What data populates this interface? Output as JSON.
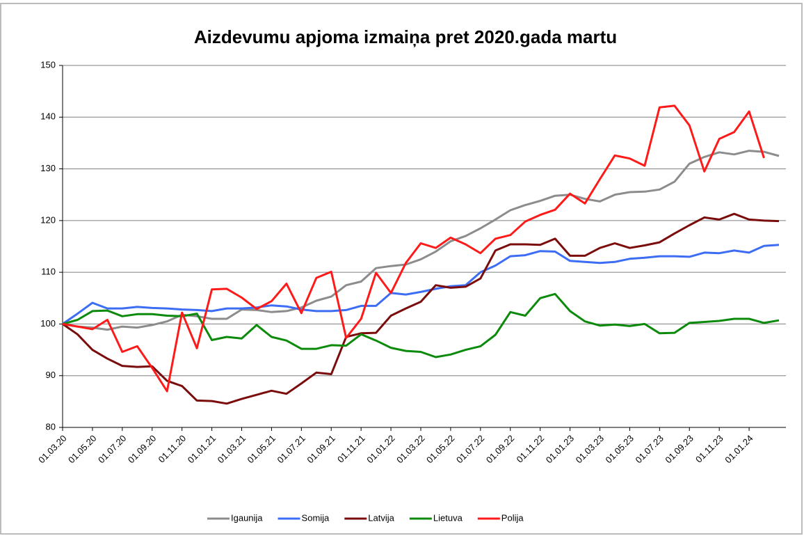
{
  "chart_data": {
    "type": "line",
    "title": "Aizdevumu apjoma izmaiņa pret 2020.gada martu",
    "categories": [
      "01.03.20",
      null,
      "01.05.20",
      null,
      "01.07.20",
      null,
      "01.09.20",
      null,
      "01.11.20",
      null,
      "01.01.21",
      null,
      "01.03.21",
      null,
      "01.05.21",
      null,
      "01.07.21",
      null,
      "01.09.21",
      null,
      "01.11.21",
      null,
      "01.01.22",
      null,
      "01.03.22",
      null,
      "01.05.22",
      null,
      "01.07.22",
      null,
      "01.09.22",
      null,
      "01.11.22",
      null,
      "01.01.23",
      null,
      "01.03.23",
      null,
      "01.05.23",
      null,
      "01.07.23",
      null,
      "01.09.23",
      null,
      "01.11.23",
      null,
      "01.01.24",
      null,
      null
    ],
    "series": [
      {
        "name": "Igaunija",
        "color": "#8c8c8c",
        "values": [
          100,
          99.5,
          99.3,
          98.9,
          99.5,
          99.3,
          99.8,
          100.5,
          101.8,
          101.5,
          101,
          101,
          102.8,
          102.7,
          102.3,
          102.5,
          103.2,
          104.5,
          105.3,
          107.5,
          108.2,
          110.8,
          111.2,
          111.5,
          112.5,
          114,
          116,
          117,
          118.5,
          120.2,
          122,
          123,
          123.8,
          124.8,
          125,
          124.2,
          123.7,
          125,
          125.5,
          125.6,
          126,
          127.5,
          131,
          132.3,
          133.2,
          132.8,
          133.5,
          133.3,
          132.5
        ]
      },
      {
        "name": "Somija",
        "color": "#3d6cf5",
        "values": [
          100,
          102,
          104.1,
          103,
          103,
          103.3,
          103.1,
          103,
          102.8,
          102.7,
          102.5,
          103,
          103,
          103.2,
          103.6,
          103.4,
          102.8,
          102.5,
          102.5,
          102.7,
          103.5,
          103.5,
          106,
          105.7,
          106.2,
          106.8,
          107.3,
          107.5,
          110,
          111.3,
          113.1,
          113.3,
          114.1,
          114,
          112.2,
          112,
          111.8,
          112,
          112.6,
          112.8,
          113.1,
          113.1,
          113,
          113.8,
          113.7,
          114.2,
          113.8,
          115.1,
          115.3
        ]
      },
      {
        "name": "Latvija",
        "color": "#7a0c0c",
        "values": [
          100,
          98,
          95,
          93.3,
          91.9,
          91.7,
          91.8,
          89,
          88,
          85.2,
          85.1,
          84.6,
          85.5,
          86.3,
          87.1,
          86.5,
          88.5,
          90.6,
          90.3,
          97.5,
          98.2,
          98.3,
          101.6,
          103,
          104.3,
          107.5,
          107,
          107.2,
          108.8,
          114.2,
          115.4,
          115.4,
          115.3,
          116.5,
          113.2,
          113.2,
          114.7,
          115.6,
          114.7,
          115.2,
          115.8,
          117.5,
          119.1,
          120.6,
          120.2,
          121.3,
          120.2,
          120,
          119.9
        ]
      },
      {
        "name": "Lietuva",
        "color": "#0b8a0b",
        "values": [
          100,
          100.8,
          102.5,
          102.6,
          101.5,
          101.9,
          101.9,
          101.6,
          101.5,
          102,
          96.9,
          97.5,
          97.2,
          99.8,
          97.5,
          96.8,
          95.2,
          95.2,
          95.9,
          95.8,
          98,
          96.8,
          95.4,
          94.8,
          94.6,
          93.6,
          94.1,
          95,
          95.7,
          97.9,
          102.3,
          101.6,
          105,
          105.8,
          102.5,
          100.5,
          99.7,
          99.9,
          99.6,
          100,
          98.2,
          98.3,
          100.2,
          100.4,
          100.6,
          101,
          101,
          100.2,
          100.7
        ]
      },
      {
        "name": "Polija",
        "color": "#ff1a1a",
        "values": [
          100,
          99.5,
          99,
          100.8,
          94.6,
          95.7,
          91.5,
          87,
          102.2,
          95.3,
          106.7,
          106.8,
          105.1,
          102.9,
          104.4,
          107.8,
          102.1,
          108.9,
          110.1,
          97.3,
          101,
          109.9,
          106,
          111.8,
          115.6,
          114.7,
          116.7,
          115.4,
          113.7,
          116.5,
          117.2,
          119.8,
          121.1,
          122.1,
          125.2,
          123.3,
          128,
          132.6,
          132,
          130.6,
          141.9,
          142.2,
          138.4,
          129.5,
          135.8,
          137.1,
          141.1,
          132.1,
          null
        ]
      }
    ],
    "ylim": [
      80,
      150
    ],
    "yticks": [
      80,
      90,
      100,
      110,
      120,
      130,
      140,
      150
    ],
    "grid": true,
    "legend": "bottom"
  }
}
